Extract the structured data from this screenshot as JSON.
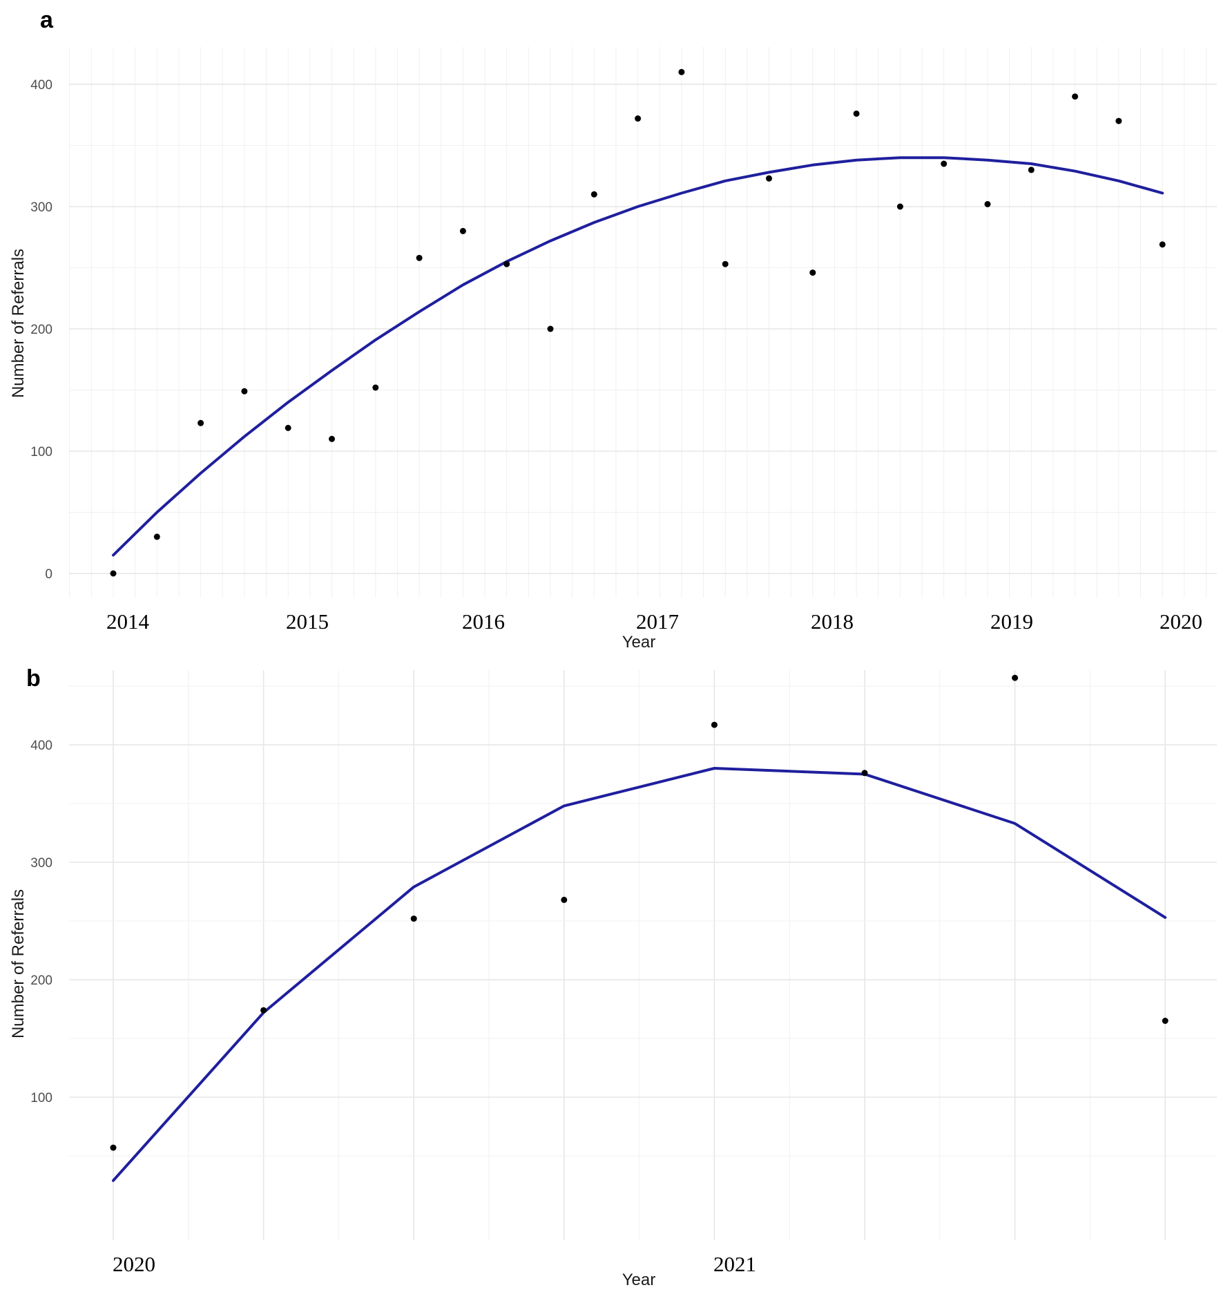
{
  "chart_data": [
    {
      "panel": "a",
      "type": "scatter",
      "xlabel": "Year",
      "ylabel": "Number of Referrals",
      "x_ticks": [
        "2014",
        "2015",
        "2016",
        "2017",
        "2018",
        "2019",
        "2020"
      ],
      "y_ticks": [
        "0",
        "100",
        "200",
        "300",
        "400"
      ],
      "ylim": [
        -20,
        425
      ],
      "grid": true,
      "points": [
        {
          "x": 0,
          "y": 0
        },
        {
          "x": 1,
          "y": 30
        },
        {
          "x": 2,
          "y": 123
        },
        {
          "x": 3,
          "y": 149
        },
        {
          "x": 4,
          "y": 119
        },
        {
          "x": 5,
          "y": 110
        },
        {
          "x": 6,
          "y": 152
        },
        {
          "x": 7,
          "y": 258
        },
        {
          "x": 8,
          "y": 280
        },
        {
          "x": 9,
          "y": 253
        },
        {
          "x": 10,
          "y": 200
        },
        {
          "x": 11,
          "y": 310
        },
        {
          "x": 12,
          "y": 372
        },
        {
          "x": 13,
          "y": 410
        },
        {
          "x": 14,
          "y": 253
        },
        {
          "x": 15,
          "y": 323
        },
        {
          "x": 16,
          "y": 246
        },
        {
          "x": 17,
          "y": 376
        },
        {
          "x": 18,
          "y": 300
        },
        {
          "x": 19,
          "y": 335
        },
        {
          "x": 20,
          "y": 302
        },
        {
          "x": 21,
          "y": 330
        },
        {
          "x": 22,
          "y": 390
        },
        {
          "x": 23,
          "y": 370
        },
        {
          "x": 24,
          "y": 269
        }
      ],
      "fit_line": [
        {
          "x": 0,
          "y": 15
        },
        {
          "x": 1,
          "y": 50
        },
        {
          "x": 2,
          "y": 82
        },
        {
          "x": 3,
          "y": 112
        },
        {
          "x": 4,
          "y": 140
        },
        {
          "x": 5,
          "y": 166
        },
        {
          "x": 6,
          "y": 191
        },
        {
          "x": 7,
          "y": 214
        },
        {
          "x": 8,
          "y": 236
        },
        {
          "x": 9,
          "y": 255
        },
        {
          "x": 10,
          "y": 272
        },
        {
          "x": 11,
          "y": 287
        },
        {
          "x": 12,
          "y": 300
        },
        {
          "x": 13,
          "y": 311
        },
        {
          "x": 14,
          "y": 321
        },
        {
          "x": 15,
          "y": 328
        },
        {
          "x": 16,
          "y": 334
        },
        {
          "x": 17,
          "y": 338
        },
        {
          "x": 18,
          "y": 340
        },
        {
          "x": 19,
          "y": 340
        },
        {
          "x": 20,
          "y": 338
        },
        {
          "x": 21,
          "y": 335
        },
        {
          "x": 22,
          "y": 329
        },
        {
          "x": 23,
          "y": 321
        },
        {
          "x": 24,
          "y": 311
        }
      ],
      "line_color": "#1f1f9e"
    },
    {
      "panel": "b",
      "type": "scatter",
      "xlabel": "Year",
      "ylabel": "Number of Referrals",
      "x_ticks": [
        "2020",
        "2021"
      ],
      "y_ticks": [
        "100",
        "200",
        "300",
        "400"
      ],
      "ylim": [
        10,
        470
      ],
      "grid": true,
      "points": [
        {
          "x": 0,
          "y": 57
        },
        {
          "x": 1,
          "y": 174
        },
        {
          "x": 2,
          "y": 252
        },
        {
          "x": 3,
          "y": 268
        },
        {
          "x": 4,
          "y": 417
        },
        {
          "x": 5,
          "y": 376
        },
        {
          "x": 6,
          "y": 457
        },
        {
          "x": 7,
          "y": 165
        }
      ],
      "fit_line": [
        {
          "x": 0,
          "y": 29
        },
        {
          "x": 1,
          "y": 172
        },
        {
          "x": 2,
          "y": 279
        },
        {
          "x": 3,
          "y": 348
        },
        {
          "x": 4,
          "y": 380
        },
        {
          "x": 5,
          "y": 375
        },
        {
          "x": 6,
          "y": 333
        },
        {
          "x": 7,
          "y": 253
        }
      ],
      "line_color": "#1f1f9e"
    }
  ]
}
